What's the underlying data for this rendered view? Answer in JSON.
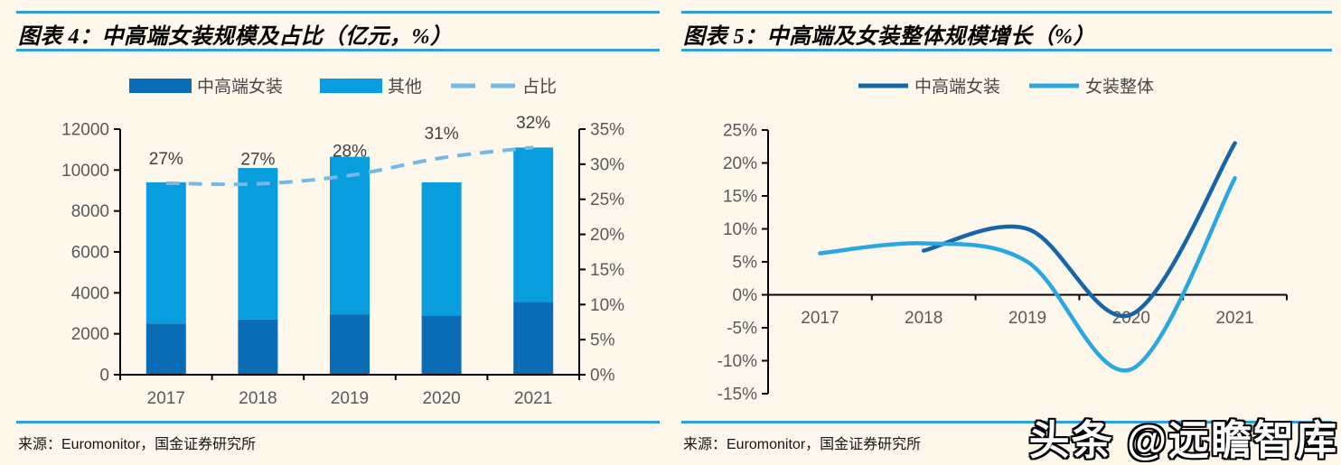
{
  "page": {
    "background": "#FDF8EB",
    "rule_color": "#2E9FD9"
  },
  "watermark": "头条 @远瞻智库",
  "left_panel": {
    "title": "图表 4：中高端女装规模及占比（亿元，%）",
    "source": "来源：Euromonitor，国金证券研究所",
    "chart_data": {
      "type": "bar",
      "title": "中高端女装规模及占比（亿元，%）",
      "categories": [
        "2017",
        "2018",
        "2019",
        "2020",
        "2021"
      ],
      "series": [
        {
          "name": "中高端女装",
          "kind": "bar",
          "color": "#0A6CB5",
          "axis": "left",
          "values": [
            2500,
            2700,
            2950,
            2900,
            3550
          ]
        },
        {
          "name": "其他",
          "kind": "bar",
          "color": "#089EDD",
          "axis": "left",
          "values": [
            6900,
            7400,
            7700,
            6500,
            7550
          ]
        },
        {
          "name": "占比",
          "kind": "dashed-line",
          "color": "#74B8E8",
          "axis": "right",
          "values": [
            27.3,
            27.2,
            28.4,
            30.9,
            32.4
          ],
          "data_labels": [
            "27%",
            "27%",
            "28%",
            "31%",
            "32%"
          ]
        }
      ],
      "left_axis": {
        "min": 0,
        "max": 12000,
        "step": 2000,
        "ticks": [
          "0",
          "2000",
          "4000",
          "6000",
          "8000",
          "10000",
          "12000"
        ]
      },
      "right_axis": {
        "min": 0,
        "max": 35,
        "step": 5,
        "ticks": [
          "0%",
          "5%",
          "10%",
          "15%",
          "20%",
          "25%",
          "30%",
          "35%"
        ]
      },
      "legend_position": "top",
      "grid": false
    }
  },
  "right_panel": {
    "title": "图表 5：中高端及女装整体规模增长（%）",
    "source": "来源：Euromonitor，国金证券研究所",
    "chart_data": {
      "type": "line",
      "title": "中高端及女装整体规模增长（%）",
      "categories": [
        "2017",
        "2018",
        "2019",
        "2020",
        "2021"
      ],
      "series": [
        {
          "name": "中高端女装",
          "kind": "line",
          "color": "#1565A8",
          "values": [
            null,
            6.7,
            10,
            -3,
            23
          ]
        },
        {
          "name": "女装整体",
          "kind": "line",
          "color": "#2AA7E0",
          "values": [
            6.3,
            7.8,
            5,
            -11.3,
            17.7
          ]
        }
      ],
      "y_axis": {
        "min": -15,
        "max": 25,
        "step": 5,
        "ticks": [
          "-15%",
          "-10%",
          "-5%",
          "0%",
          "5%",
          "10%",
          "15%",
          "20%",
          "25%"
        ]
      },
      "legend_position": "top",
      "grid": false
    }
  },
  "text_colors": {
    "axis_label": "#595959",
    "legend_label": "#474747",
    "data_label": "#404040"
  }
}
